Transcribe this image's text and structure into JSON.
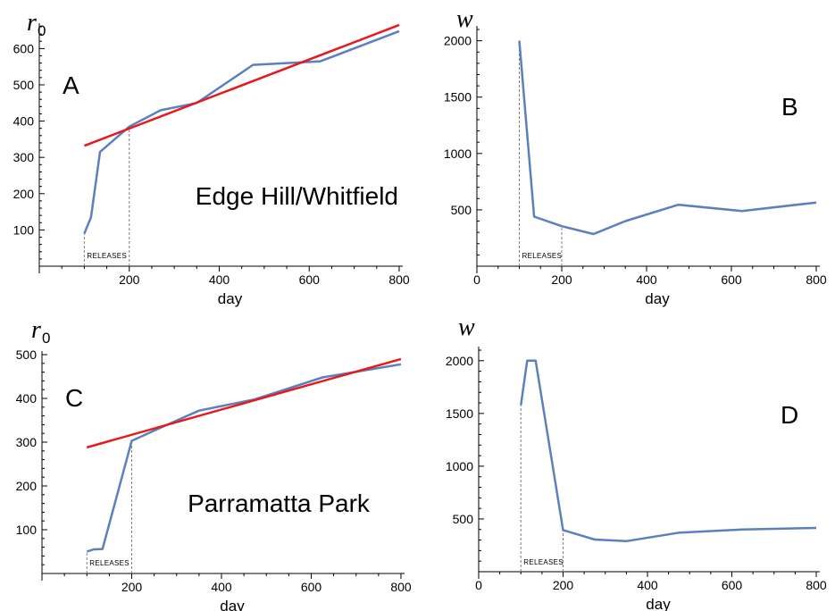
{
  "chart_data": [
    {
      "panel": "A",
      "type": "line",
      "ylabel": "r",
      "ylabel_sub": "0",
      "xlabel": "day",
      "annotation": "Edge Hill/Whitfield",
      "release_label": "RELEASES",
      "release_markers": [
        100,
        200
      ],
      "xlim": [
        0,
        800
      ],
      "ylim": [
        0,
        660
      ],
      "xticks": [
        200,
        400,
        600,
        800
      ],
      "yticks": [
        100,
        200,
        300,
        400,
        500,
        600
      ],
      "colors": {
        "data": "#5b7fbf",
        "fit": "#e8191c"
      },
      "series": [
        {
          "x": [
            100,
            115,
            135,
            200,
            270,
            350,
            475,
            625,
            800
          ],
          "y": [
            90,
            135,
            315,
            385,
            430,
            450,
            555,
            565,
            648
          ]
        }
      ],
      "fit": {
        "x": [
          100,
          800
        ],
        "y": [
          332,
          665
        ]
      }
    },
    {
      "panel": "B",
      "type": "line",
      "ylabel": "w",
      "xlabel": "day",
      "release_label": "RELEASES",
      "release_markers": [
        100,
        200
      ],
      "xlim": [
        0,
        800
      ],
      "ylim": [
        0,
        2100
      ],
      "xticks": [
        0,
        200,
        400,
        600,
        800
      ],
      "yticks": [
        500,
        1000,
        1500,
        2000
      ],
      "colors": {
        "data": "#5b7fbf"
      },
      "series": [
        {
          "x": [
            100,
            135,
            200,
            275,
            350,
            475,
            625,
            800
          ],
          "y": [
            2000,
            440,
            355,
            285,
            400,
            545,
            490,
            565
          ]
        }
      ]
    },
    {
      "panel": "C",
      "type": "line",
      "ylabel": "r",
      "ylabel_sub": "0",
      "xlabel": "day",
      "annotation": "Parramatta Park",
      "release_label": "RELEASES",
      "release_markers": [
        100,
        200
      ],
      "xlim": [
        0,
        800
      ],
      "ylim": [
        0,
        500
      ],
      "xticks": [
        200,
        400,
        600,
        800
      ],
      "yticks": [
        100,
        200,
        300,
        400,
        500
      ],
      "colors": {
        "data": "#5b7fbf",
        "fit": "#e8191c"
      },
      "series": [
        {
          "x": [
            100,
            115,
            135,
            200,
            275,
            350,
            475,
            625,
            800
          ],
          "y": [
            50,
            55,
            56,
            303,
            338,
            372,
            398,
            448,
            478
          ]
        }
      ],
      "fit": {
        "x": [
          100,
          800
        ],
        "y": [
          288,
          490
        ]
      }
    },
    {
      "panel": "D",
      "type": "line",
      "ylabel": "w",
      "xlabel": "day",
      "release_label": "RELEASES",
      "release_markers": [
        100,
        200
      ],
      "xlim": [
        0,
        800
      ],
      "ylim": [
        0,
        2100
      ],
      "xticks": [
        0,
        200,
        400,
        600,
        800
      ],
      "yticks": [
        500,
        1000,
        1500,
        2000
      ],
      "colors": {
        "data": "#5b7fbf"
      },
      "series": [
        {
          "x": [
            100,
            115,
            135,
            200,
            275,
            350,
            475,
            625,
            800
          ],
          "y": [
            1580,
            2000,
            2000,
            395,
            305,
            290,
            370,
            400,
            415
          ]
        }
      ]
    }
  ]
}
